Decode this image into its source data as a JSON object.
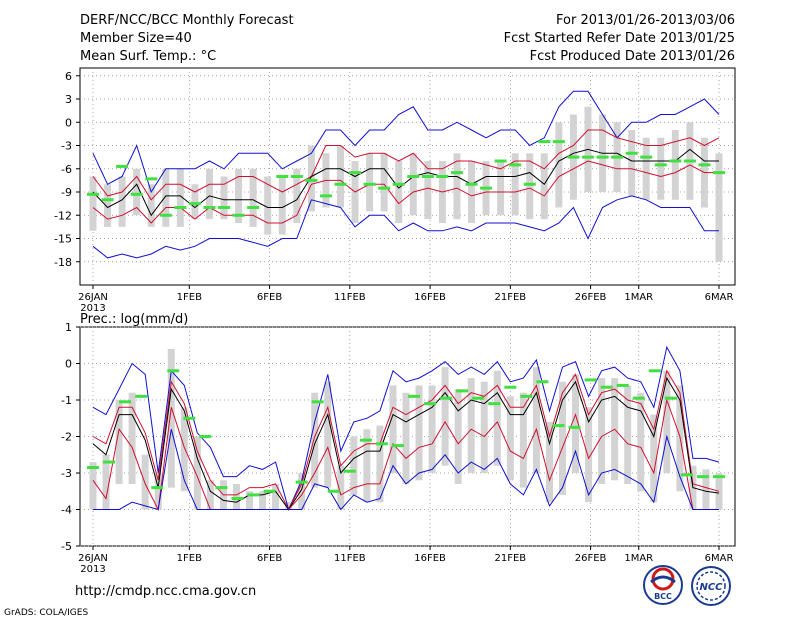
{
  "header": {
    "title": "DERF/NCC/BCC Monthly Forecast",
    "member": "Member Size=40",
    "variable": "Mean Surf. Temp.: °C",
    "period": "For 2013/01/26-2013/03/06",
    "started": "Fcst Started Refer Date 2013/01/25",
    "produced": "Fcst Produced Date 2013/01/26"
  },
  "footer": {
    "url": "http://cmdp.ncc.cma.gov.cn",
    "credit": "GrADS: COLA/IGES",
    "logo_left": "BCC",
    "logo_right": "NCC"
  },
  "colors": {
    "max_min": "#1010d0",
    "spread": "#d01030",
    "mean": "#000000",
    "bars": "#d3d3d3",
    "obs": "#40e040"
  },
  "chart_data": [
    {
      "type": "line",
      "name": "temperature",
      "title": "Mean Surf. Temp.: °C",
      "ylim": [
        -21,
        7
      ],
      "yticks": [
        6,
        3,
        0,
        -3,
        -6,
        -9,
        -12,
        -15,
        -18
      ],
      "xtick_labels": [
        "26JAN",
        "1FEB",
        "6FEB",
        "11FEB",
        "16FEB",
        "21FEB",
        "26FEB",
        "1MAR",
        "6MAR"
      ],
      "xtick_days": [
        0,
        6,
        11,
        16,
        21,
        26,
        31,
        34,
        39
      ],
      "year_label": "2013",
      "series": [
        {
          "name": "max",
          "color": "#1010d0",
          "values": [
            -4,
            -8,
            -7,
            -3,
            -9,
            -6,
            -6,
            -6,
            -5,
            -6,
            -4,
            -4,
            -4,
            -6,
            -5,
            -4,
            -1,
            -1,
            -3,
            -1,
            -1,
            1,
            2,
            -1,
            -1,
            0,
            -1,
            -2,
            -1,
            -1,
            -3,
            -2,
            2,
            4,
            4,
            1,
            -2,
            0,
            0,
            1,
            1,
            2,
            3,
            1
          ]
        },
        {
          "name": "upper",
          "color": "#d01030",
          "values": [
            -7,
            -9.5,
            -9,
            -7,
            -10,
            -8,
            -8,
            -9,
            -8,
            -8,
            -7,
            -7,
            -8,
            -9,
            -8,
            -7,
            -3,
            -3,
            -4.5,
            -4,
            -4,
            -5,
            -4,
            -6,
            -6,
            -5,
            -5,
            -5.5,
            -6,
            -5,
            -5,
            -6,
            -4,
            -3,
            -1,
            -1,
            -2,
            -2.5,
            -3,
            -3,
            -2.5,
            -2,
            -3,
            -2
          ]
        },
        {
          "name": "mean",
          "color": "#000000",
          "values": [
            -9,
            -11,
            -10,
            -8,
            -12,
            -9.5,
            -9.5,
            -11,
            -9.5,
            -10,
            -10,
            -10,
            -11,
            -11,
            -10,
            -7,
            -6,
            -6,
            -7,
            -6,
            -6,
            -8.5,
            -7,
            -6.5,
            -7,
            -7,
            -8,
            -7,
            -7,
            -7,
            -6.5,
            -8,
            -5,
            -4,
            -3.5,
            -4,
            -4,
            -5,
            -5,
            -5,
            -5,
            -3.5,
            -5,
            -5
          ]
        },
        {
          "name": "lower",
          "color": "#d01030",
          "values": [
            -11,
            -12.5,
            -12,
            -11,
            -13,
            -11,
            -11,
            -12.5,
            -11,
            -12,
            -12,
            -12,
            -13,
            -13,
            -12,
            -8,
            -7.5,
            -7.5,
            -9,
            -8,
            -8,
            -10.5,
            -9,
            -8.5,
            -9,
            -8.5,
            -9.5,
            -9,
            -9,
            -9,
            -8.5,
            -9.5,
            -7,
            -6,
            -5,
            -5.5,
            -6,
            -6,
            -6.5,
            -7,
            -6.5,
            -5.5,
            -6.5,
            -6.5
          ]
        },
        {
          "name": "min",
          "color": "#1010d0",
          "values": [
            -16,
            -17.5,
            -17,
            -17.5,
            -17,
            -16,
            -16.5,
            -16,
            -15,
            -15,
            -15,
            -15.5,
            -16,
            -15,
            -15,
            -10,
            -10.5,
            -11,
            -13.5,
            -12,
            -12,
            -14,
            -13,
            -14,
            -14,
            -13.5,
            -14,
            -13,
            -13,
            -13,
            -13.5,
            -14,
            -13,
            -11,
            -15,
            -11,
            -10,
            -9.5,
            -10,
            -11,
            -11,
            -11,
            -14,
            -14
          ]
        }
      ],
      "bars": {
        "low": [
          -14,
          -13.5,
          -13.5,
          -12,
          -13.5,
          -13.5,
          -13.5,
          -12.5,
          -12.5,
          -12.5,
          -13,
          -13.5,
          -14.5,
          -14.5,
          -13,
          -11.5,
          -11,
          -11,
          -13,
          -11.5,
          -11.5,
          -13,
          -12,
          -12.5,
          -13,
          -12.5,
          -13,
          -12,
          -12,
          -12,
          -12.5,
          -12.5,
          -11,
          -10,
          -9,
          -9,
          -9,
          -9.5,
          -10,
          -10,
          -10,
          -10,
          -11,
          -18
        ],
        "high": [
          -7,
          -8,
          -7,
          -6,
          -8,
          -6,
          -6,
          -8,
          -6,
          -7,
          -6,
          -6,
          -7,
          -7,
          -6,
          -3,
          -4,
          -3,
          -5,
          -4,
          -4,
          -5,
          -4,
          -5,
          -5,
          -4,
          -5,
          -5,
          -5,
          -4,
          -4,
          -4,
          0,
          1,
          2,
          1,
          0,
          -1,
          -2,
          -2,
          -1,
          0,
          -2,
          -4
        ]
      },
      "observed": [
        -9.3,
        -10,
        -5.7,
        -9.3,
        -7.3,
        -12,
        -11,
        -10.5,
        -11,
        -11,
        -12,
        -11,
        null,
        -7,
        -7,
        -7.5,
        -9.5,
        -8,
        -6.5,
        -8,
        -8.5,
        -8,
        -7,
        -7,
        -7,
        -6.5,
        -8,
        -8.5,
        -5,
        -5.5,
        -8,
        -2.5,
        -2.5,
        -4.5,
        -4.5,
        -4.5,
        -4.5,
        -4,
        -4.5,
        -5.5,
        -5,
        -5,
        -5.5,
        -6.5
      ]
    },
    {
      "type": "line",
      "name": "precipitation",
      "title": "Prec.: log(mm/d)",
      "ylim": [
        -5,
        1
      ],
      "yticks": [
        1,
        0,
        -1,
        -2,
        -3,
        -4,
        -5
      ],
      "xtick_labels": [
        "26JAN",
        "1FEB",
        "6FEB",
        "11FEB",
        "16FEB",
        "21FEB",
        "26FEB",
        "1MAR",
        "6MAR"
      ],
      "xtick_days": [
        0,
        6,
        11,
        16,
        21,
        26,
        31,
        34,
        39
      ],
      "year_label": "2013",
      "series": [
        {
          "name": "max",
          "color": "#1010d0",
          "values": [
            -1.2,
            -1.4,
            -0.7,
            0,
            -0.3,
            -3,
            -0.2,
            -0.6,
            -1.9,
            -2.3,
            -3.1,
            -3.1,
            -2.8,
            -2.9,
            -2.7,
            -4,
            -3.2,
            -1.6,
            -0.3,
            -2.4,
            -1.6,
            -1.5,
            -1.3,
            -0.2,
            -0.5,
            -0.4,
            -0.2,
            0.05,
            -0.3,
            -0.1,
            -0.3,
            0.05,
            -0.5,
            -0.4,
            0.1,
            -1.3,
            -0.1,
            0.05,
            -0.9,
            -0.2,
            -0.1,
            -0.4,
            -0.5,
            -1.2,
            0.45,
            -0.2,
            -2.6,
            -2.6,
            -2.7
          ]
        },
        {
          "name": "upper",
          "color": "#d01030",
          "values": [
            -2,
            -2.2,
            -1.2,
            -1.2,
            -1.9,
            -3.2,
            -0.5,
            -1.1,
            -2.4,
            -3.2,
            -3.6,
            -3.6,
            -3.4,
            -3.4,
            -3.3,
            -4,
            -3.3,
            -2,
            -1.2,
            -2.8,
            -2.4,
            -2.2,
            -2.2,
            -1.2,
            -1.4,
            -1.2,
            -1,
            -0.6,
            -1.1,
            -0.8,
            -0.9,
            -0.6,
            -1.2,
            -1.2,
            -0.6,
            -2,
            -0.8,
            -0.3,
            -1.4,
            -0.8,
            -0.7,
            -1,
            -1.1,
            -1.8,
            -0.2,
            -0.8,
            -3.3,
            -3.4,
            -3.5
          ]
        },
        {
          "name": "mean",
          "color": "#000000",
          "values": [
            -2.2,
            -2.5,
            -1.4,
            -1.4,
            -2.1,
            -3.4,
            -0.7,
            -1.3,
            -2.6,
            -3.5,
            -3.75,
            -3.8,
            -3.6,
            -3.6,
            -3.5,
            -4,
            -3.45,
            -2.2,
            -1.4,
            -3,
            -2.6,
            -2.4,
            -2.4,
            -1.4,
            -1.6,
            -1.4,
            -1.2,
            -0.8,
            -1.3,
            -1,
            -1.1,
            -0.8,
            -1.4,
            -1.4,
            -0.8,
            -2.2,
            -1,
            -0.5,
            -1.6,
            -1,
            -0.9,
            -1.2,
            -1.3,
            -2,
            -0.4,
            -1,
            -3.4,
            -3.5,
            -3.55
          ]
        },
        {
          "name": "lower",
          "color": "#d01030",
          "values": [
            -3.2,
            -3.7,
            -1.8,
            -2.3,
            -3.3,
            -4,
            -1.2,
            -2.3,
            -3.1,
            -4,
            -4,
            -4,
            -4,
            -4,
            -4,
            -4,
            -3.6,
            -3,
            -2.3,
            -3.6,
            -3.4,
            -3.3,
            -3.3,
            -2.2,
            -2.6,
            -2.3,
            -2.2,
            -1.6,
            -2.2,
            -1.8,
            -2,
            -1.6,
            -2.4,
            -2.6,
            -1.8,
            -3.2,
            -2.3,
            -1.4,
            -2.6,
            -2,
            -1.8,
            -2.2,
            -2.3,
            -3,
            -1,
            -2,
            -4,
            -4,
            -4
          ]
        },
        {
          "name": "min",
          "color": "#1010d0",
          "values": [
            -4,
            -4,
            -4,
            -3.8,
            -3.9,
            -4,
            -1.8,
            -3.2,
            -4,
            -4,
            -4,
            -4,
            -4,
            -4,
            -4,
            -4,
            -4,
            -3.3,
            -3.4,
            -4,
            -3.6,
            -3.8,
            -3.7,
            -2.8,
            -3.3,
            -3,
            -2.9,
            -2.5,
            -3,
            -2.7,
            -2.9,
            -2.6,
            -3.3,
            -3.6,
            -2.9,
            -3.9,
            -3.4,
            -2.4,
            -3.6,
            -3,
            -2.9,
            -3.1,
            -3.3,
            -3.8,
            -2,
            -3.1,
            -4,
            -4,
            -4
          ]
        }
      ],
      "bars": {
        "low": [
          -4,
          -4,
          -3.3,
          -3.3,
          -4,
          -4,
          -3.4,
          -3.5,
          -4,
          -4,
          -4,
          -4,
          -4,
          -4,
          -4,
          -4,
          -4,
          -3.4,
          -3.4,
          -4,
          -3.6,
          -3.8,
          -3.8,
          -3,
          -3.3,
          -3.2,
          -3,
          -2.8,
          -3.3,
          -3,
          -3,
          -2.8,
          -3.2,
          -3.4,
          -3,
          -3.8,
          -3.6,
          -3,
          -3.8,
          -3.3,
          -3.2,
          -3.3,
          -3.5,
          -3.8,
          -3,
          -3.5,
          -4,
          -4,
          -4
        ],
        "high": [
          -2.7,
          -2.5,
          -1,
          -0.8,
          -2.5,
          -3,
          0.4,
          -1.2,
          -2,
          -3.2,
          -3.2,
          -3.3,
          -3.5,
          -3.5,
          -3.3,
          -3.8,
          -3,
          -0.8,
          -0.5,
          -2.8,
          -2,
          -1.8,
          -1.7,
          -0.6,
          -0.8,
          -0.6,
          -0.6,
          -0.1,
          -0.7,
          -0.4,
          -0.5,
          -0.2,
          -0.9,
          -0.8,
          -0.1,
          -1.6,
          -0.5,
          -0.3,
          -1.2,
          -0.4,
          -0.4,
          -0.6,
          -0.8,
          -1.4,
          -0.2,
          -0.6,
          -2.8,
          -2.9,
          -3
        ]
      },
      "observed": [
        -2.85,
        -2.7,
        -1.05,
        -0.9,
        -3.4,
        -0.2,
        -1.5,
        -2,
        -3.4,
        -3.7,
        -3.6,
        -3.5,
        null,
        -3.25,
        -1.05,
        -3.5,
        -2.95,
        -2.1,
        -2.2,
        -2.25,
        -0.9,
        -1.1,
        -0.95,
        -0.75,
        -0.95,
        -1.1,
        -0.65,
        -0.9,
        -0.5,
        -1.7,
        -1.75,
        -0.45,
        -0.65,
        -0.6,
        -0.95,
        -0.2,
        -0.95,
        -3.05,
        -3.1,
        -3.1
      ]
    }
  ]
}
